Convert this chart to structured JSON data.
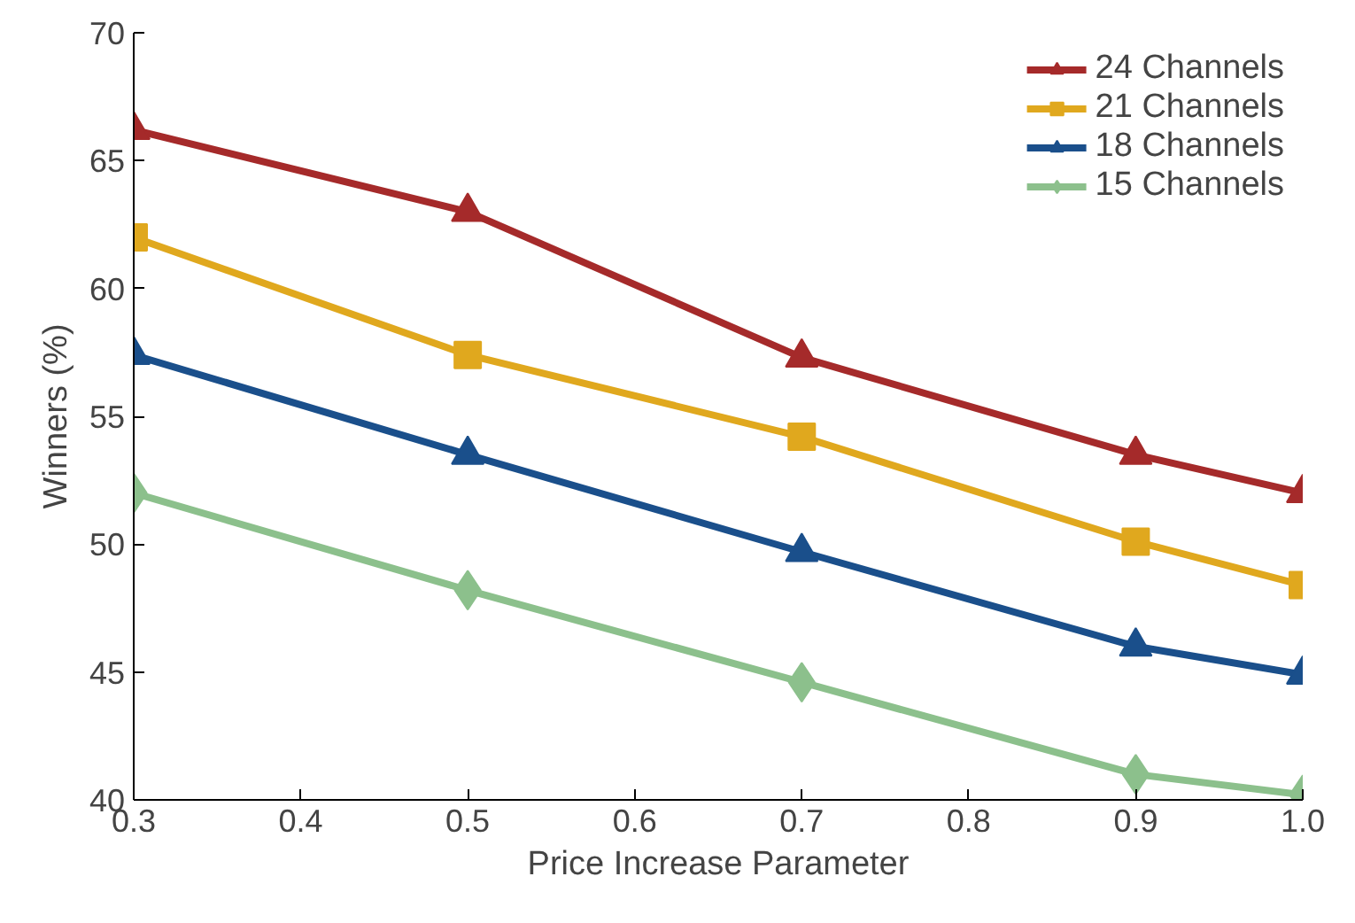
{
  "chart_data": {
    "type": "line",
    "xlabel": "Price Increase Parameter",
    "ylabel": "Winners (%)",
    "x": [
      0.3,
      0.5,
      0.7,
      0.9,
      1.0
    ],
    "series": [
      {
        "name": "24 Channels",
        "color": "#a52a2a",
        "marker": "triangle",
        "values": [
          66.2,
          63.0,
          57.3,
          53.5,
          52.0
        ]
      },
      {
        "name": "21 Channels",
        "color": "#e0a81e",
        "marker": "square",
        "values": [
          62.0,
          57.4,
          54.2,
          50.1,
          48.4
        ]
      },
      {
        "name": "18 Channels",
        "color": "#1a4f8b",
        "marker": "triangle",
        "values": [
          57.4,
          53.5,
          49.7,
          46.0,
          44.9
        ]
      },
      {
        "name": "15 Channels",
        "color": "#8cc08c",
        "marker": "diamond",
        "values": [
          52.0,
          48.2,
          44.6,
          41.0,
          40.2
        ]
      }
    ],
    "xlim": [
      0.3,
      1.0
    ],
    "ylim": [
      40,
      70
    ],
    "xticks": [
      {
        "value": 0.3,
        "label": "0.3"
      },
      {
        "value": 0.4,
        "label": "0.4"
      },
      {
        "value": 0.5,
        "label": "0.5"
      },
      {
        "value": 0.6,
        "label": "0.6"
      },
      {
        "value": 0.7,
        "label": "0.7"
      },
      {
        "value": 0.8,
        "label": "0.8"
      },
      {
        "value": 0.9,
        "label": "0.9"
      },
      {
        "value": 1.0,
        "label": "1.0"
      }
    ],
    "yticks": [
      40,
      45,
      50,
      55,
      60,
      65,
      70
    ],
    "grid": false,
    "legend": "top right",
    "line_style": "solid"
  }
}
